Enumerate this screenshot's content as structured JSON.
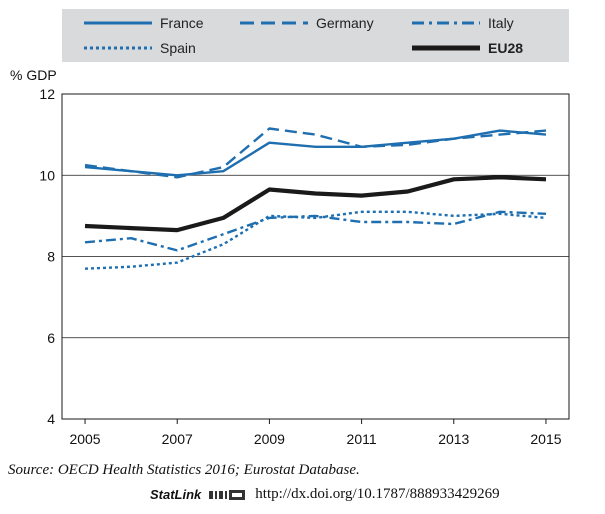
{
  "legend": {
    "items": [
      {
        "label": "France",
        "style": "solid",
        "color": "#1f6fb0"
      },
      {
        "label": "Germany",
        "style": "dash",
        "color": "#1f6fb0"
      },
      {
        "label": "Italy",
        "style": "dashdot",
        "color": "#1f6fb0"
      },
      {
        "label": "Spain",
        "style": "dot",
        "color": "#1f6fb0"
      },
      {
        "label": "EU28",
        "style": "thick",
        "color": "#1a1a1a"
      }
    ]
  },
  "source": {
    "prefix": "Source:",
    "text": "OECD Health Statistics 2016; Eurostat Database."
  },
  "statlink": {
    "brand": "StatLink",
    "url": "http://dx.doi.org/10.1787/888933429269"
  },
  "chart_data": {
    "type": "line",
    "ylabel": "% GDP",
    "ylim": [
      4,
      12
    ],
    "yticks": [
      4,
      6,
      8,
      10,
      12
    ],
    "x": [
      2005,
      2006,
      2007,
      2008,
      2009,
      2010,
      2011,
      2012,
      2013,
      2014,
      2015
    ],
    "xticks": [
      "2005",
      "2007",
      "2009",
      "2011",
      "2013",
      "2015"
    ],
    "series": [
      {
        "name": "France",
        "values": [
          10.2,
          10.1,
          10.0,
          10.1,
          10.8,
          10.7,
          10.7,
          10.8,
          10.9,
          11.1,
          11.0
        ]
      },
      {
        "name": "Germany",
        "values": [
          10.25,
          10.1,
          9.95,
          10.2,
          11.15,
          11.0,
          10.7,
          10.75,
          10.9,
          11.0,
          11.1
        ]
      },
      {
        "name": "Italy",
        "values": [
          8.35,
          8.45,
          8.15,
          8.55,
          8.95,
          9.0,
          8.85,
          8.85,
          8.8,
          9.1,
          9.05
        ]
      },
      {
        "name": "Spain",
        "values": [
          7.7,
          7.75,
          7.85,
          8.3,
          9.0,
          8.95,
          9.1,
          9.1,
          9.0,
          9.05,
          8.95
        ]
      },
      {
        "name": "EU28",
        "values": [
          8.75,
          8.7,
          8.65,
          8.95,
          9.65,
          9.55,
          9.5,
          9.6,
          9.9,
          9.95,
          9.9
        ]
      }
    ]
  }
}
